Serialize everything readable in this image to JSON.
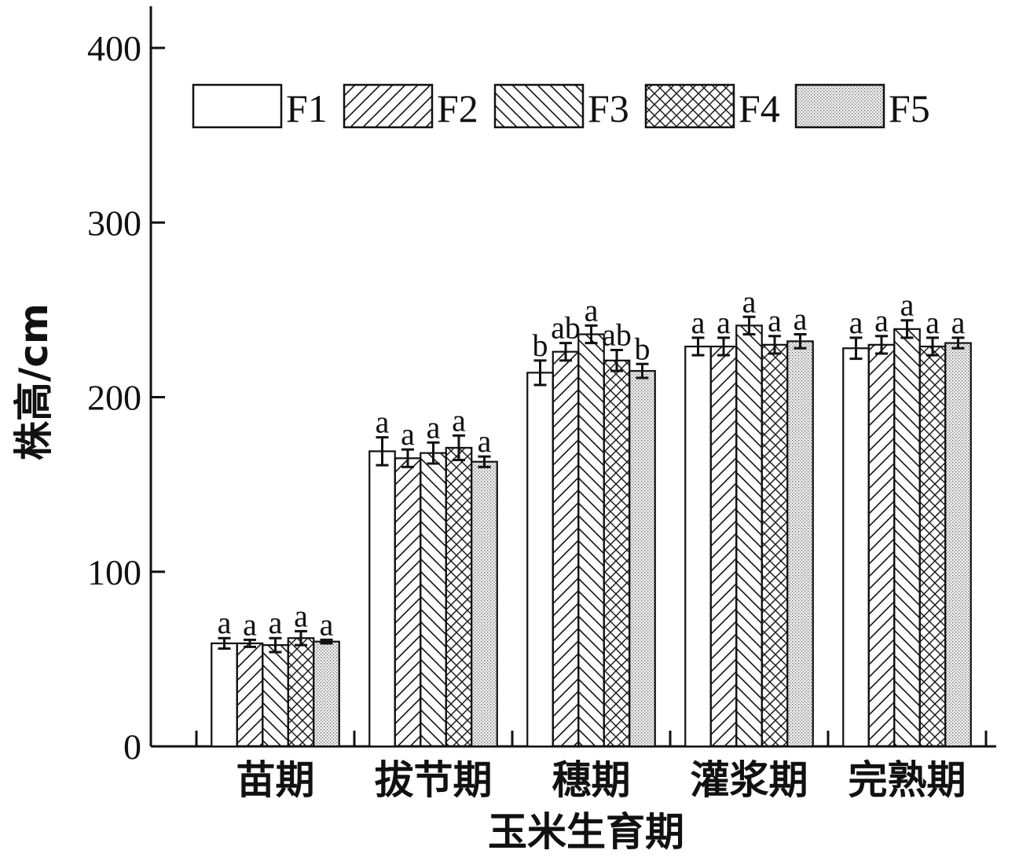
{
  "chart_data": {
    "type": "bar",
    "xlabel": "玉米生育期",
    "ylabel": "株高/cm",
    "ylim": [
      0,
      420
    ],
    "yticks": [
      0,
      100,
      200,
      300,
      400
    ],
    "categories": [
      "苗期",
      "拔节期",
      "穗期",
      "灌浆期",
      "完熟期"
    ],
    "legend_position": "top",
    "series": [
      {
        "name": "F1",
        "pattern": "none",
        "values": [
          59,
          169,
          214,
          229,
          228
        ],
        "errors": [
          3,
          8,
          7,
          5,
          6
        ],
        "labels": [
          "a",
          "a",
          "b",
          "a",
          "a"
        ]
      },
      {
        "name": "F2",
        "pattern": "diagonal-up",
        "values": [
          59,
          165,
          226,
          229,
          230
        ],
        "errors": [
          2,
          5,
          5,
          5,
          5
        ],
        "labels": [
          "a",
          "a",
          "ab",
          "a",
          "a"
        ]
      },
      {
        "name": "F3",
        "pattern": "diagonal-down",
        "values": [
          58,
          168,
          236,
          241,
          239
        ],
        "errors": [
          4,
          6,
          5,
          5,
          5
        ],
        "labels": [
          "a",
          "a",
          "a",
          "a",
          "a"
        ]
      },
      {
        "name": "F4",
        "pattern": "crosshatch",
        "values": [
          62,
          171,
          221,
          230,
          229
        ],
        "errors": [
          4,
          7,
          6,
          5,
          5
        ],
        "labels": [
          "a",
          "a",
          "ab",
          "a",
          "a"
        ]
      },
      {
        "name": "F5",
        "pattern": "dots",
        "values": [
          60,
          163,
          215,
          232,
          231
        ],
        "errors": [
          1,
          3,
          4,
          4,
          3
        ],
        "labels": [
          "a",
          "a",
          "b",
          "a",
          "a"
        ]
      }
    ]
  }
}
